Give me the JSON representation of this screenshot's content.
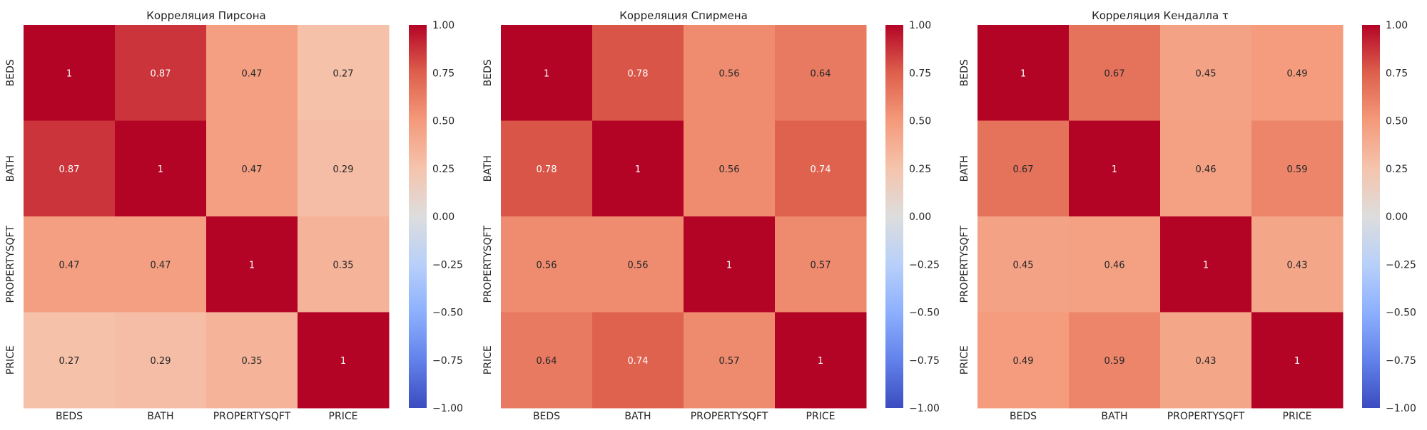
{
  "chart_data": [
    {
      "type": "heatmap",
      "title": "Корреляция Пирсона",
      "x_labels": [
        "BEDS",
        "BATH",
        "PROPERTYSQFT",
        "PRICE"
      ],
      "y_labels": [
        "BEDS",
        "BATH",
        "PROPERTYSQFT",
        "PRICE"
      ],
      "matrix": [
        [
          1,
          0.87,
          0.47,
          0.27
        ],
        [
          0.87,
          1,
          0.47,
          0.29
        ],
        [
          0.47,
          0.47,
          1,
          0.35
        ],
        [
          0.27,
          0.29,
          0.35,
          1
        ]
      ],
      "cell_labels": [
        [
          "1",
          "0.87",
          "0.47",
          "0.27"
        ],
        [
          "0.87",
          "1",
          "0.47",
          "0.29"
        ],
        [
          "0.47",
          "0.47",
          "1",
          "0.35"
        ],
        [
          "0.27",
          "0.29",
          "0.35",
          "1"
        ]
      ],
      "colorbar_ticks": [
        "1.00",
        "0.75",
        "0.50",
        "0.25",
        "0.00",
        "−0.25",
        "−0.50",
        "−0.75",
        "−1.00"
      ],
      "vmin": -1,
      "vmax": 1,
      "colormap": "coolwarm"
    },
    {
      "type": "heatmap",
      "title": "Корреляция Спирмена",
      "x_labels": [
        "BEDS",
        "BATH",
        "PROPERTYSQFT",
        "PRICE"
      ],
      "y_labels": [
        "BEDS",
        "BATH",
        "PROPERTYSQFT",
        "PRICE"
      ],
      "matrix": [
        [
          1,
          0.78,
          0.56,
          0.64
        ],
        [
          0.78,
          1,
          0.56,
          0.74
        ],
        [
          0.56,
          0.56,
          1,
          0.57
        ],
        [
          0.64,
          0.74,
          0.57,
          1
        ]
      ],
      "cell_labels": [
        [
          "1",
          "0.78",
          "0.56",
          "0.64"
        ],
        [
          "0.78",
          "1",
          "0.56",
          "0.74"
        ],
        [
          "0.56",
          "0.56",
          "1",
          "0.57"
        ],
        [
          "0.64",
          "0.74",
          "0.57",
          "1"
        ]
      ],
      "colorbar_ticks": [
        "1.00",
        "0.75",
        "0.50",
        "0.25",
        "0.00",
        "−0.25",
        "−0.50",
        "−0.75",
        "−1.00"
      ],
      "vmin": -1,
      "vmax": 1,
      "colormap": "coolwarm"
    },
    {
      "type": "heatmap",
      "title": "Корреляция Кендалла τ",
      "x_labels": [
        "BEDS",
        "BATH",
        "PROPERTYSQFT",
        "PRICE"
      ],
      "y_labels": [
        "BEDS",
        "BATH",
        "PROPERTYSQFT",
        "PRICE"
      ],
      "matrix": [
        [
          1,
          0.67,
          0.45,
          0.49
        ],
        [
          0.67,
          1,
          0.46,
          0.59
        ],
        [
          0.45,
          0.46,
          1,
          0.43
        ],
        [
          0.49,
          0.59,
          0.43,
          1
        ]
      ],
      "cell_labels": [
        [
          "1",
          "0.67",
          "0.45",
          "0.49"
        ],
        [
          "0.67",
          "1",
          "0.46",
          "0.59"
        ],
        [
          "0.45",
          "0.46",
          "1",
          "0.43"
        ],
        [
          "0.49",
          "0.59",
          "0.43",
          "1"
        ]
      ],
      "colorbar_ticks": [
        "1.00",
        "0.75",
        "0.50",
        "0.25",
        "0.00",
        "−0.25",
        "−0.50",
        "−0.75",
        "−1.00"
      ],
      "vmin": -1,
      "vmax": 1,
      "colormap": "coolwarm"
    }
  ]
}
